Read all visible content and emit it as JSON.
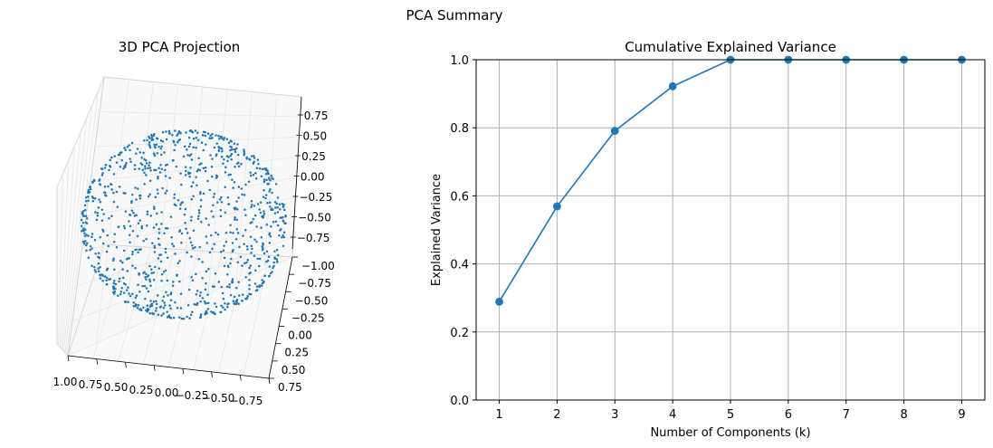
{
  "figure": {
    "suptitle": "PCA Summary"
  },
  "colors": {
    "series": "#1f77b4",
    "grid": "#b0b0b0",
    "pane_grid": "#e6e6e6",
    "pane_edge": "#cfcfcf"
  },
  "chart_data": [
    {
      "type": "scatter",
      "projection": "3d",
      "title": "3D PCA Projection",
      "xlabel": "",
      "ylabel": "",
      "zlabel": "",
      "xlim": [
        -0.75,
        1.0
      ],
      "ylim": [
        -1.0,
        0.75
      ],
      "zlim": [
        -1.0,
        0.75
      ],
      "x_ticks": [
        "1.00",
        "0.75",
        "0.50",
        "0.25",
        "0.00",
        "−0.25",
        "−0.50",
        "−0.75"
      ],
      "y_ticks": [
        "−1.00",
        "−0.75",
        "−0.50",
        "−0.25",
        "0.00",
        "0.25",
        "0.50",
        "0.75"
      ],
      "z_ticks": [
        "0.75",
        "0.50",
        "0.25",
        "0.00",
        "−0.25",
        "−0.50",
        "−0.75"
      ],
      "shape": "unit sphere surface",
      "approx_point_count": 1000,
      "marker_color": "#1f77b4"
    },
    {
      "type": "line",
      "title": "Cumulative Explained Variance",
      "xlabel": "Number of Components (k)",
      "ylabel": "Explained Variance",
      "x": [
        1,
        2,
        3,
        4,
        5,
        6,
        7,
        8,
        9
      ],
      "y": [
        0.289,
        0.569,
        0.791,
        0.922,
        1.0,
        1.0,
        1.0,
        1.0,
        1.0
      ],
      "xlim": [
        0.6,
        9.4
      ],
      "ylim": [
        0,
        1.0
      ],
      "x_ticks": [
        "1",
        "2",
        "3",
        "4",
        "5",
        "6",
        "7",
        "8",
        "9"
      ],
      "y_ticks": [
        "0.0",
        "0.2",
        "0.4",
        "0.6",
        "0.8",
        "1.0"
      ],
      "marker": "circle",
      "grid": true,
      "line_color": "#1f77b4"
    }
  ]
}
